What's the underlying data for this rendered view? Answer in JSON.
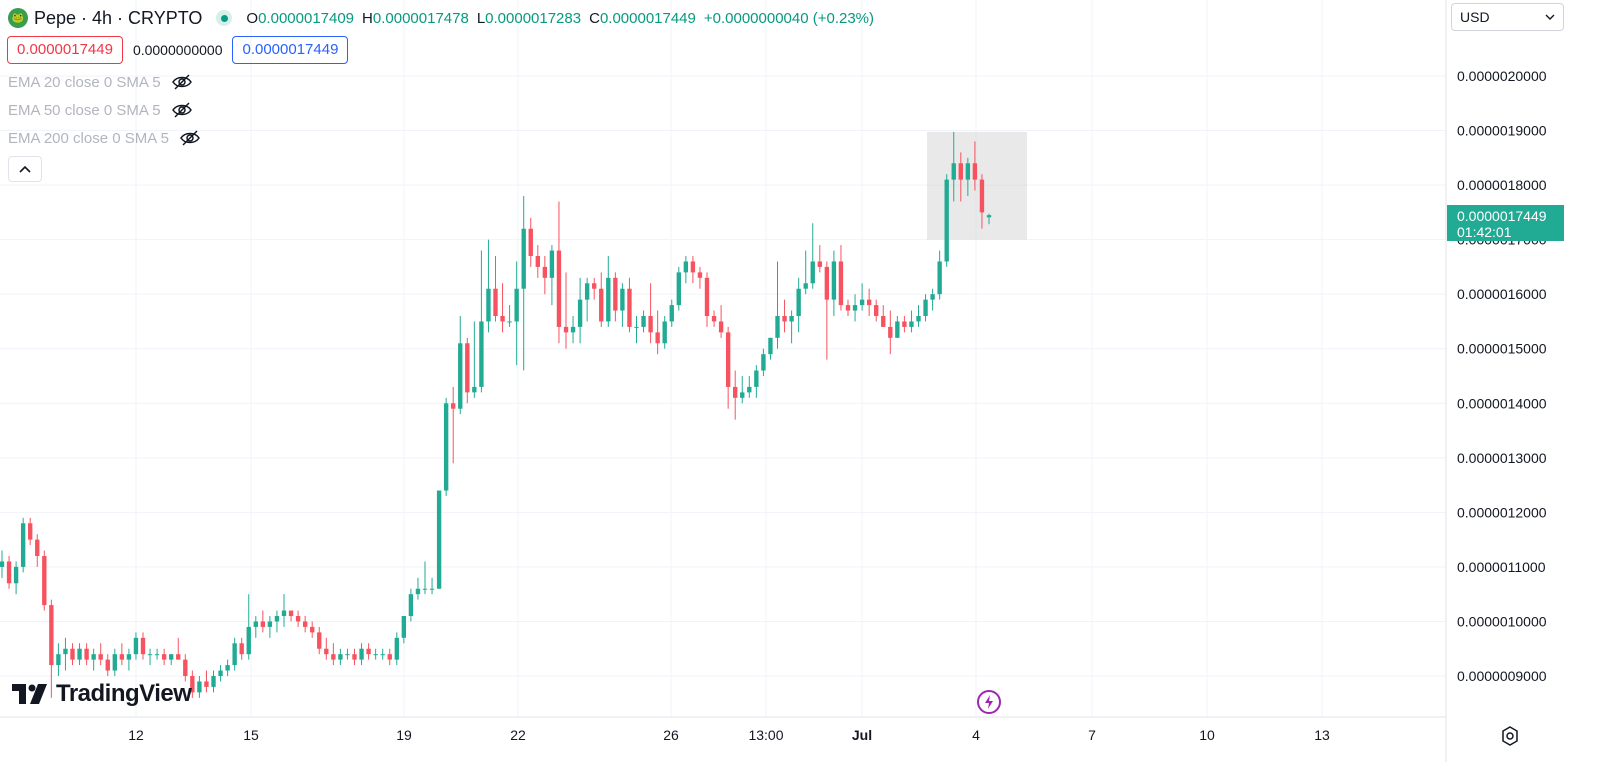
{
  "header": {
    "symbol": "Pepe · 4h · CRYPTO",
    "open_label": "O",
    "open": "0.0000017409",
    "high_label": "H",
    "high": "0.0000017478",
    "low_label": "L",
    "low": "0.0000017283",
    "close_label": "C",
    "close": "0.0000017449",
    "change": "+0.0000000040 (+0.23%)"
  },
  "trade": {
    "sell_price": "0.0000017449",
    "spread": "0.0000000000",
    "buy_price": "0.0000017449"
  },
  "indicators": [
    {
      "label": "EMA 20 close 0 SMA 5",
      "icon": "eye-off-icon"
    },
    {
      "label": "EMA 50 close 0 SMA 5",
      "icon": "eye-off-icon"
    },
    {
      "label": "EMA 200 close 0 SMA 5",
      "icon": "eye-off-icon"
    }
  ],
  "currency": {
    "selected": "USD"
  },
  "current_price": {
    "price": "0.0000017449",
    "countdown": "01:42:01"
  },
  "brand": "TradingView",
  "colors": {
    "up": "#22ab94",
    "down": "#f7525f",
    "grid": "#f0f3fa",
    "accent": "#2962ff"
  },
  "chart_data": {
    "type": "candlestick",
    "y_ticks": [
      "0.0000020000",
      "0.0000019000",
      "0.0000018000",
      "0.0000017000",
      "0.0000016000",
      "0.0000015000",
      "0.0000014000",
      "0.0000013000",
      "0.0000012000",
      "0.0000011000",
      "0.0000010000",
      "0.0000009000"
    ],
    "ylim": [
      8.5e-07,
      2.1e-06
    ],
    "x_ticks": [
      "12",
      "15",
      "19",
      "22",
      "26",
      "13:00",
      "Jul",
      "4",
      "7",
      "10",
      "13"
    ],
    "highlight_range": {
      "y_low": 1.7e-06,
      "y_high": 1.8975e-06
    },
    "candles": [
      [
        1.1e-06,
        1.13e-06,
        1.08e-06,
        1.11e-06
      ],
      [
        1.11e-06,
        1.12e-06,
        1.06e-06,
        1.07e-06
      ],
      [
        1.07e-06,
        1.11e-06,
        1.05e-06,
        1.1e-06
      ],
      [
        1.1e-06,
        1.19e-06,
        1.09e-06,
        1.18e-06
      ],
      [
        1.18e-06,
        1.19e-06,
        1.14e-06,
        1.15e-06
      ],
      [
        1.15e-06,
        1.16e-06,
        1.1e-06,
        1.12e-06
      ],
      [
        1.12e-06,
        1.13e-06,
        1.02e-06,
        1.03e-06
      ],
      [
        1.03e-06,
        1.04e-06,
        8.6e-07,
        9.2e-07
      ],
      [
        9.2e-07,
        9.6e-07,
        9e-07,
        9.4e-07
      ],
      [
        9.4e-07,
        9.7e-07,
        9.1e-07,
        9.5e-07
      ],
      [
        9.5e-07,
        9.6e-07,
        9.2e-07,
        9.3e-07
      ],
      [
        9.3e-07,
        9.6e-07,
        9.2e-07,
        9.5e-07
      ],
      [
        9.5e-07,
        9.6e-07,
        9.2e-07,
        9.3e-07
      ],
      [
        9.3e-07,
        9.5e-07,
        9.1e-07,
        9.4e-07
      ],
      [
        9.4e-07,
        9.6e-07,
        9.2e-07,
        9.3e-07
      ],
      [
        9.3e-07,
        9.4e-07,
        9e-07,
        9.1e-07
      ],
      [
        9.1e-07,
        9.5e-07,
        9e-07,
        9.4e-07
      ],
      [
        9.4e-07,
        9.6e-07,
        9.2e-07,
        9.3e-07
      ],
      [
        9.3e-07,
        9.5e-07,
        9.1e-07,
        9.4e-07
      ],
      [
        9.4e-07,
        9.8e-07,
        9.3e-07,
        9.7e-07
      ],
      [
        9.7e-07,
        9.8e-07,
        9.3e-07,
        9.4e-07
      ],
      [
        9.4e-07,
        9.5e-07,
        9.2e-07,
        9.4e-07
      ],
      [
        9.4e-07,
        9.5e-07,
        9.3e-07,
        9.4e-07
      ],
      [
        9.4e-07,
        9.5e-07,
        9.2e-07,
        9.3e-07
      ],
      [
        9.3e-07,
        9.4e-07,
        9.2e-07,
        9.4e-07
      ],
      [
        9.4e-07,
        9.7e-07,
        9.3e-07,
        9.3e-07
      ],
      [
        9.3e-07,
        9.4e-07,
        8.9e-07,
        9e-07
      ],
      [
        9e-07,
        9.1e-07,
        8.6e-07,
        8.7e-07
      ],
      [
        8.7e-07,
        9e-07,
        8.6e-07,
        8.9e-07
      ],
      [
        8.9e-07,
        9.1e-07,
        8.7e-07,
        8.8e-07
      ],
      [
        8.8e-07,
        9.1e-07,
        8.7e-07,
        9e-07
      ],
      [
        9e-07,
        9.2e-07,
        8.9e-07,
        9.1e-07
      ],
      [
        9.1e-07,
        9.3e-07,
        9e-07,
        9.2e-07
      ],
      [
        9.2e-07,
        9.7e-07,
        9.1e-07,
        9.6e-07
      ],
      [
        9.6e-07,
        9.7e-07,
        9.3e-07,
        9.4e-07
      ],
      [
        9.4e-07,
        1.05e-06,
        9.3e-07,
        9.9e-07
      ],
      [
        9.9e-07,
        1.01e-06,
        9.7e-07,
        1e-06
      ],
      [
        1e-06,
        1.02e-06,
        9.8e-07,
        9.9e-07
      ],
      [
        9.9e-07,
        1.01e-06,
        9.7e-07,
        1e-06
      ],
      [
        1e-06,
        1.02e-06,
        9.8e-07,
        1.01e-06
      ],
      [
        1.01e-06,
        1.05e-06,
        9.9e-07,
        1.02e-06
      ],
      [
        1.02e-06,
        1.02e-06,
        1e-06,
        1.01e-06
      ],
      [
        1.01e-06,
        1.02e-06,
        9.9e-07,
        1e-06
      ],
      [
        1e-06,
        1.01e-06,
        9.8e-07,
        9.9e-07
      ],
      [
        9.9e-07,
        1e-06,
        9.7e-07,
        9.8e-07
      ],
      [
        9.8e-07,
        9.9e-07,
        9.4e-07,
        9.5e-07
      ],
      [
        9.5e-07,
        9.7e-07,
        9.3e-07,
        9.4e-07
      ],
      [
        9.4e-07,
        9.6e-07,
        9.2e-07,
        9.3e-07
      ],
      [
        9.3e-07,
        9.5e-07,
        9.2e-07,
        9.4e-07
      ],
      [
        9.4e-07,
        9.5e-07,
        9.3e-07,
        9.4e-07
      ],
      [
        9.4e-07,
        9.5e-07,
        9.2e-07,
        9.3e-07
      ],
      [
        9.3e-07,
        9.6e-07,
        9.2e-07,
        9.5e-07
      ],
      [
        9.5e-07,
        9.6e-07,
        9.3e-07,
        9.4e-07
      ],
      [
        9.4e-07,
        9.5e-07,
        9.3e-07,
        9.4e-07
      ],
      [
        9.4e-07,
        9.5e-07,
        9.3e-07,
        9.4e-07
      ],
      [
        9.4e-07,
        9.5e-07,
        9.2e-07,
        9.3e-07
      ],
      [
        9.3e-07,
        9.8e-07,
        9.2e-07,
        9.7e-07
      ],
      [
        9.7e-07,
        1.01e-06,
        9.6e-07,
        1.01e-06
      ],
      [
        1.01e-06,
        1.06e-06,
        1e-06,
        1.05e-06
      ],
      [
        1.05e-06,
        1.08e-06,
        1.04e-06,
        1.06e-06
      ],
      [
        1.06e-06,
        1.11e-06,
        1.05e-06,
        1.06e-06
      ],
      [
        1.06e-06,
        1.08e-06,
        1.05e-06,
        1.06e-06
      ],
      [
        1.06e-06,
        1.24e-06,
        1.06e-06,
        1.24e-06
      ],
      [
        1.24e-06,
        1.41e-06,
        1.23e-06,
        1.4e-06
      ],
      [
        1.4e-06,
        1.43e-06,
        1.29e-06,
        1.39e-06
      ],
      [
        1.39e-06,
        1.56e-06,
        1.38e-06,
        1.51e-06
      ],
      [
        1.51e-06,
        1.52e-06,
        1.4e-06,
        1.42e-06
      ],
      [
        1.42e-06,
        1.55e-06,
        1.41e-06,
        1.43e-06
      ],
      [
        1.43e-06,
        1.68e-06,
        1.42e-06,
        1.55e-06
      ],
      [
        1.55e-06,
        1.7e-06,
        1.53e-06,
        1.61e-06
      ],
      [
        1.61e-06,
        1.67e-06,
        1.55e-06,
        1.56e-06
      ],
      [
        1.56e-06,
        1.62e-06,
        1.53e-06,
        1.55e-06
      ],
      [
        1.55e-06,
        1.58e-06,
        1.54e-06,
        1.55e-06
      ],
      [
        1.55e-06,
        1.66e-06,
        1.47e-06,
        1.61e-06
      ],
      [
        1.61e-06,
        1.78e-06,
        1.46e-06,
        1.72e-06
      ],
      [
        1.72e-06,
        1.74e-06,
        1.65e-06,
        1.67e-06
      ],
      [
        1.67e-06,
        1.69e-06,
        1.63e-06,
        1.65e-06
      ],
      [
        1.65e-06,
        1.67e-06,
        1.6e-06,
        1.63e-06
      ],
      [
        1.63e-06,
        1.69e-06,
        1.58e-06,
        1.68e-06
      ],
      [
        1.68e-06,
        1.77e-06,
        1.51e-06,
        1.54e-06
      ],
      [
        1.54e-06,
        1.64e-06,
        1.5e-06,
        1.53e-06
      ],
      [
        1.53e-06,
        1.56e-06,
        1.51e-06,
        1.54e-06
      ],
      [
        1.54e-06,
        1.63e-06,
        1.51e-06,
        1.59e-06
      ],
      [
        1.59e-06,
        1.63e-06,
        1.55e-06,
        1.62e-06
      ],
      [
        1.62e-06,
        1.63e-06,
        1.59e-06,
        1.61e-06
      ],
      [
        1.61e-06,
        1.64e-06,
        1.54e-06,
        1.55e-06
      ],
      [
        1.55e-06,
        1.67e-06,
        1.54e-06,
        1.63e-06
      ],
      [
        1.63e-06,
        1.64e-06,
        1.55e-06,
        1.57e-06
      ],
      [
        1.57e-06,
        1.62e-06,
        1.54e-06,
        1.61e-06
      ],
      [
        1.61e-06,
        1.63e-06,
        1.53e-06,
        1.54e-06
      ],
      [
        1.54e-06,
        1.56e-06,
        1.51e-06,
        1.54e-06
      ],
      [
        1.54e-06,
        1.57e-06,
        1.53e-06,
        1.56e-06
      ],
      [
        1.56e-06,
        1.62e-06,
        1.51e-06,
        1.53e-06
      ],
      [
        1.53e-06,
        1.57e-06,
        1.49e-06,
        1.51e-06
      ],
      [
        1.51e-06,
        1.56e-06,
        1.5e-06,
        1.55e-06
      ],
      [
        1.55e-06,
        1.59e-06,
        1.54e-06,
        1.58e-06
      ],
      [
        1.58e-06,
        1.65e-06,
        1.57e-06,
        1.64e-06
      ],
      [
        1.64e-06,
        1.67e-06,
        1.62e-06,
        1.66e-06
      ],
      [
        1.66e-06,
        1.67e-06,
        1.62e-06,
        1.64e-06
      ],
      [
        1.64e-06,
        1.65e-06,
        1.61e-06,
        1.63e-06
      ],
      [
        1.63e-06,
        1.64e-06,
        1.54e-06,
        1.56e-06
      ],
      [
        1.56e-06,
        1.57e-06,
        1.54e-06,
        1.55e-06
      ],
      [
        1.55e-06,
        1.58e-06,
        1.52e-06,
        1.53e-06
      ],
      [
        1.53e-06,
        1.54e-06,
        1.39e-06,
        1.43e-06
      ],
      [
        1.43e-06,
        1.46e-06,
        1.37e-06,
        1.41e-06
      ],
      [
        1.41e-06,
        1.45e-06,
        1.4e-06,
        1.42e-06
      ],
      [
        1.42e-06,
        1.45e-06,
        1.41e-06,
        1.43e-06
      ],
      [
        1.43e-06,
        1.47e-06,
        1.41e-06,
        1.46e-06
      ],
      [
        1.46e-06,
        1.5e-06,
        1.45e-06,
        1.49e-06
      ],
      [
        1.49e-06,
        1.52e-06,
        1.48e-06,
        1.52e-06
      ],
      [
        1.52e-06,
        1.66e-06,
        1.5e-06,
        1.56e-06
      ],
      [
        1.56e-06,
        1.59e-06,
        1.53e-06,
        1.55e-06
      ],
      [
        1.55e-06,
        1.57e-06,
        1.51e-06,
        1.56e-06
      ],
      [
        1.56e-06,
        1.63e-06,
        1.53e-06,
        1.61e-06
      ],
      [
        1.61e-06,
        1.68e-06,
        1.6e-06,
        1.62e-06
      ],
      [
        1.62e-06,
        1.73e-06,
        1.61e-06,
        1.66e-06
      ],
      [
        1.66e-06,
        1.69e-06,
        1.64e-06,
        1.65e-06
      ],
      [
        1.65e-06,
        1.66e-06,
        1.48e-06,
        1.59e-06
      ],
      [
        1.59e-06,
        1.68e-06,
        1.56e-06,
        1.66e-06
      ],
      [
        1.66e-06,
        1.69e-06,
        1.57e-06,
        1.58e-06
      ],
      [
        1.58e-06,
        1.59e-06,
        1.56e-06,
        1.57e-06
      ],
      [
        1.57e-06,
        1.6e-06,
        1.55e-06,
        1.58e-06
      ],
      [
        1.58e-06,
        1.62e-06,
        1.57e-06,
        1.59e-06
      ],
      [
        1.59e-06,
        1.61e-06,
        1.56e-06,
        1.58e-06
      ],
      [
        1.58e-06,
        1.59e-06,
        1.55e-06,
        1.56e-06
      ],
      [
        1.56e-06,
        1.58e-06,
        1.54e-06,
        1.54e-06
      ],
      [
        1.54e-06,
        1.57e-06,
        1.49e-06,
        1.52e-06
      ],
      [
        1.52e-06,
        1.56e-06,
        1.52e-06,
        1.55e-06
      ],
      [
        1.55e-06,
        1.56e-06,
        1.53e-06,
        1.54e-06
      ],
      [
        1.54e-06,
        1.57e-06,
        1.53e-06,
        1.55e-06
      ],
      [
        1.55e-06,
        1.58e-06,
        1.54e-06,
        1.56e-06
      ],
      [
        1.56e-06,
        1.6e-06,
        1.55e-06,
        1.59e-06
      ],
      [
        1.59e-06,
        1.61e-06,
        1.57e-06,
        1.6e-06
      ],
      [
        1.6e-06,
        1.68e-06,
        1.59e-06,
        1.66e-06
      ],
      [
        1.66e-06,
        1.82e-06,
        1.65e-06,
        1.81e-06
      ],
      [
        1.81e-06,
        1.8975e-06,
        1.77e-06,
        1.84e-06
      ],
      [
        1.84e-06,
        1.86e-06,
        1.77e-06,
        1.81e-06
      ],
      [
        1.81e-06,
        1.85e-06,
        1.78e-06,
        1.84e-06
      ],
      [
        1.84e-06,
        1.88e-06,
        1.79e-06,
        1.81e-06
      ],
      [
        1.81e-06,
        1.82e-06,
        1.72e-06,
        1.75e-06
      ],
      [
        1.7409e-06,
        1.7478e-06,
        1.7283e-06,
        1.7449e-06
      ]
    ]
  }
}
